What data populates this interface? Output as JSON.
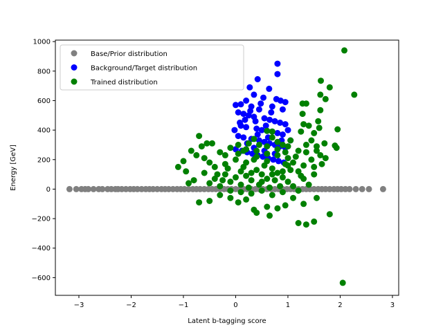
{
  "chart_data": {
    "type": "scatter",
    "xlabel": "Latent b-tagging score",
    "ylabel": "Energy [GeV]",
    "xlim": [
      -3.45,
      3.12
    ],
    "ylim": [
      -720,
      1010
    ],
    "xticks": [
      -3,
      -2,
      -1,
      0,
      1,
      2,
      3
    ],
    "yticks": [
      -600,
      -400,
      -200,
      0,
      200,
      400,
      600,
      800,
      1000
    ],
    "grid": false,
    "legend_position": "top-left",
    "series": [
      {
        "name": "Base/Prior distribution",
        "color": "#808080",
        "points": [
          [
            -3.18,
            0
          ],
          [
            -3.05,
            0
          ],
          [
            -2.95,
            0
          ],
          [
            -2.88,
            0
          ],
          [
            -2.82,
            0
          ],
          [
            -2.72,
            0
          ],
          [
            -2.62,
            0
          ],
          [
            -2.55,
            0
          ],
          [
            -2.45,
            0
          ],
          [
            -2.38,
            0
          ],
          [
            -2.3,
            0
          ],
          [
            -2.25,
            0
          ],
          [
            -2.18,
            0
          ],
          [
            -2.1,
            0
          ],
          [
            -2.02,
            0
          ],
          [
            -1.95,
            0
          ],
          [
            -1.88,
            0
          ],
          [
            -1.8,
            0
          ],
          [
            -1.72,
            0
          ],
          [
            -1.65,
            0
          ],
          [
            -1.58,
            0
          ],
          [
            -1.5,
            0
          ],
          [
            -1.42,
            0
          ],
          [
            -1.35,
            0
          ],
          [
            -1.28,
            0
          ],
          [
            -1.2,
            0
          ],
          [
            -1.12,
            0
          ],
          [
            -1.05,
            0
          ],
          [
            -0.98,
            0
          ],
          [
            -0.9,
            0
          ],
          [
            -0.82,
            0
          ],
          [
            -0.75,
            0
          ],
          [
            -0.68,
            0
          ],
          [
            -0.6,
            0
          ],
          [
            -0.52,
            0
          ],
          [
            -0.45,
            0
          ],
          [
            -0.38,
            0
          ],
          [
            -0.3,
            0
          ],
          [
            -0.22,
            0
          ],
          [
            -0.15,
            0
          ],
          [
            -0.08,
            0
          ],
          [
            0.0,
            0
          ],
          [
            0.08,
            0
          ],
          [
            0.15,
            0
          ],
          [
            0.22,
            0
          ],
          [
            0.3,
            0
          ],
          [
            0.38,
            0
          ],
          [
            0.45,
            0
          ],
          [
            0.52,
            0
          ],
          [
            0.6,
            0
          ],
          [
            0.68,
            0
          ],
          [
            0.75,
            0
          ],
          [
            0.82,
            0
          ],
          [
            0.9,
            0
          ],
          [
            0.98,
            0
          ],
          [
            1.05,
            0
          ],
          [
            1.12,
            0
          ],
          [
            1.2,
            0
          ],
          [
            1.28,
            0
          ],
          [
            1.35,
            0
          ],
          [
            1.42,
            0
          ],
          [
            1.5,
            0
          ],
          [
            1.58,
            0
          ],
          [
            1.65,
            0
          ],
          [
            1.72,
            0
          ],
          [
            1.8,
            0
          ],
          [
            1.88,
            0
          ],
          [
            1.95,
            0
          ],
          [
            2.02,
            0
          ],
          [
            2.1,
            0
          ],
          [
            2.18,
            0
          ],
          [
            2.3,
            0
          ],
          [
            2.42,
            0
          ],
          [
            2.55,
            0
          ],
          [
            2.82,
            0
          ]
        ]
      },
      {
        "name": "Background/Target distribution",
        "color": "#0000ff",
        "points": [
          [
            0.8,
            850
          ],
          [
            0.8,
            780
          ],
          [
            0.42,
            745
          ],
          [
            0.27,
            690
          ],
          [
            0.35,
            640
          ],
          [
            0.64,
            680
          ],
          [
            0.53,
            620
          ],
          [
            0.78,
            610
          ],
          [
            0.86,
            600
          ],
          [
            0.95,
            590
          ],
          [
            0.2,
            600
          ],
          [
            0.1,
            575
          ],
          [
            0.0,
            570
          ],
          [
            0.3,
            560
          ],
          [
            0.45,
            540
          ],
          [
            0.7,
            560
          ],
          [
            0.9,
            540
          ],
          [
            0.05,
            520
          ],
          [
            0.15,
            510
          ],
          [
            0.25,
            500
          ],
          [
            0.35,
            490
          ],
          [
            0.55,
            480
          ],
          [
            0.65,
            470
          ],
          [
            0.75,
            460
          ],
          [
            0.85,
            450
          ],
          [
            0.95,
            440
          ],
          [
            0.1,
            430
          ],
          [
            0.2,
            420
          ],
          [
            0.4,
            410
          ],
          [
            0.5,
            400
          ],
          [
            0.6,
            395
          ],
          [
            0.7,
            390
          ],
          [
            0.8,
            380
          ],
          [
            0.9,
            370
          ],
          [
            0.05,
            360
          ],
          [
            0.15,
            350
          ],
          [
            0.3,
            340
          ],
          [
            0.45,
            330
          ],
          [
            0.55,
            320
          ],
          [
            0.65,
            310
          ],
          [
            0.75,
            300
          ],
          [
            0.85,
            290
          ],
          [
            0.95,
            280
          ],
          [
            0.0,
            270
          ],
          [
            0.12,
            260
          ],
          [
            0.22,
            250
          ],
          [
            0.32,
            240
          ],
          [
            0.42,
            230
          ],
          [
            0.52,
            220
          ],
          [
            0.62,
            210
          ],
          [
            0.72,
            200
          ],
          [
            0.82,
            190
          ],
          [
            0.92,
            180
          ],
          [
            0.18,
            470
          ],
          [
            0.38,
            460
          ],
          [
            0.58,
            430
          ],
          [
            0.68,
            520
          ],
          [
            0.48,
            580
          ],
          [
            0.28,
            530
          ],
          [
            0.08,
            450
          ],
          [
            0.62,
            350
          ],
          [
            0.42,
            370
          ],
          [
            0.22,
            310
          ],
          [
            0.88,
            330
          ],
          [
            0.35,
            280
          ],
          [
            0.55,
            260
          ],
          [
            0.75,
            240
          ],
          [
            1.0,
            400
          ],
          [
            1.05,
            330
          ],
          [
            -0.02,
            400
          ]
        ]
      },
      {
        "name": "Trained distribution",
        "color": "#008000",
        "points": [
          [
            2.08,
            940
          ],
          [
            2.27,
            640
          ],
          [
            1.63,
            735
          ],
          [
            1.8,
            690
          ],
          [
            1.62,
            640
          ],
          [
            1.72,
            610
          ],
          [
            1.28,
            580
          ],
          [
            1.35,
            580
          ],
          [
            1.62,
            535
          ],
          [
            1.28,
            510
          ],
          [
            1.58,
            460
          ],
          [
            1.3,
            440
          ],
          [
            1.4,
            430
          ],
          [
            1.6,
            415
          ],
          [
            1.95,
            405
          ],
          [
            1.25,
            390
          ],
          [
            1.5,
            380
          ],
          [
            1.45,
            330
          ],
          [
            1.7,
            310
          ],
          [
            1.35,
            300
          ],
          [
            1.55,
            290
          ],
          [
            1.9,
            295
          ],
          [
            1.93,
            280
          ],
          [
            1.55,
            260
          ],
          [
            1.62,
            230
          ],
          [
            1.72,
            210
          ],
          [
            1.65,
            170
          ],
          [
            1.5,
            150
          ],
          [
            1.2,
            260
          ],
          [
            1.15,
            220
          ],
          [
            1.05,
            330
          ],
          [
            1.0,
            290
          ],
          [
            0.95,
            250
          ],
          [
            1.1,
            180
          ],
          [
            1.3,
            160
          ],
          [
            -0.7,
            360
          ],
          [
            -0.55,
            310
          ],
          [
            -0.45,
            310
          ],
          [
            -0.85,
            260
          ],
          [
            -0.65,
            290
          ],
          [
            -1.0,
            190
          ],
          [
            -1.1,
            150
          ],
          [
            -0.95,
            120
          ],
          [
            -0.75,
            230
          ],
          [
            -0.6,
            210
          ],
          [
            -0.5,
            180
          ],
          [
            -0.4,
            150
          ],
          [
            -0.3,
            250
          ],
          [
            -0.2,
            230
          ],
          [
            -0.1,
            280
          ],
          [
            0.05,
            300
          ],
          [
            0.15,
            260
          ],
          [
            0.25,
            310
          ],
          [
            0.35,
            340
          ],
          [
            0.45,
            300
          ],
          [
            0.6,
            290
          ],
          [
            0.7,
            350
          ],
          [
            0.8,
            320
          ],
          [
            0.9,
            300
          ],
          [
            0.7,
            390
          ],
          [
            0.6,
            395
          ],
          [
            -0.8,
            60
          ],
          [
            -0.9,
            40
          ],
          [
            -0.7,
            -90
          ],
          [
            -0.5,
            -80
          ],
          [
            -0.3,
            -40
          ],
          [
            -0.1,
            -60
          ],
          [
            0.05,
            -90
          ],
          [
            0.2,
            -70
          ],
          [
            0.35,
            -140
          ],
          [
            0.4,
            -160
          ],
          [
            0.6,
            -120
          ],
          [
            0.65,
            -180
          ],
          [
            0.8,
            -130
          ],
          [
            0.95,
            -110
          ],
          [
            1.1,
            -60
          ],
          [
            1.2,
            -230
          ],
          [
            1.35,
            -240
          ],
          [
            1.5,
            -220
          ],
          [
            1.55,
            -60
          ],
          [
            1.3,
            -100
          ],
          [
            1.8,
            -170
          ],
          [
            2.05,
            -635
          ],
          [
            -0.2,
            100
          ],
          [
            -0.1,
            50
          ],
          [
            0.0,
            80
          ],
          [
            0.1,
            120
          ],
          [
            0.2,
            90
          ],
          [
            0.3,
            60
          ],
          [
            0.4,
            130
          ],
          [
            0.5,
            100
          ],
          [
            0.6,
            70
          ],
          [
            0.7,
            140
          ],
          [
            0.8,
            110
          ],
          [
            0.9,
            80
          ],
          [
            1.0,
            50
          ],
          [
            1.1,
            20
          ],
          [
            -0.3,
            20
          ],
          [
            -0.4,
            70
          ],
          [
            -0.5,
            40
          ],
          [
            -0.6,
            110
          ],
          [
            -0.2,
            170
          ],
          [
            0.0,
            200
          ],
          [
            0.2,
            180
          ],
          [
            0.4,
            220
          ],
          [
            0.6,
            190
          ],
          [
            0.8,
            230
          ],
          [
            1.0,
            210
          ],
          [
            1.2,
            120
          ],
          [
            1.3,
            70
          ],
          [
            1.4,
            30
          ],
          [
            0.1,
            -20
          ],
          [
            0.3,
            -30
          ],
          [
            0.5,
            -10
          ],
          [
            0.7,
            -40
          ],
          [
            0.9,
            -20
          ],
          [
            1.2,
            -10
          ],
          [
            -0.1,
            -10
          ],
          [
            0.15,
            150
          ],
          [
            0.55,
            160
          ],
          [
            0.75,
            60
          ],
          [
            0.95,
            170
          ],
          [
            0.25,
            10
          ],
          [
            0.45,
            30
          ],
          [
            0.65,
            10
          ],
          [
            0.85,
            20
          ],
          [
            0.35,
            200
          ],
          [
            0.05,
            240
          ],
          [
            -0.15,
            140
          ],
          [
            1.05,
            130
          ],
          [
            1.25,
            90
          ],
          [
            1.45,
            200
          ],
          [
            1.35,
            250
          ],
          [
            1.5,
            100
          ],
          [
            -0.35,
            100
          ],
          [
            -0.25,
            60
          ],
          [
            0.1,
            30
          ],
          [
            0.3,
            110
          ],
          [
            0.5,
            50
          ],
          [
            0.7,
            100
          ],
          [
            0.9,
            120
          ],
          [
            0.2,
            270
          ],
          [
            0.4,
            260
          ],
          [
            0.6,
            240
          ],
          [
            0.8,
            270
          ],
          [
            1.0,
            160
          ]
        ]
      }
    ]
  }
}
